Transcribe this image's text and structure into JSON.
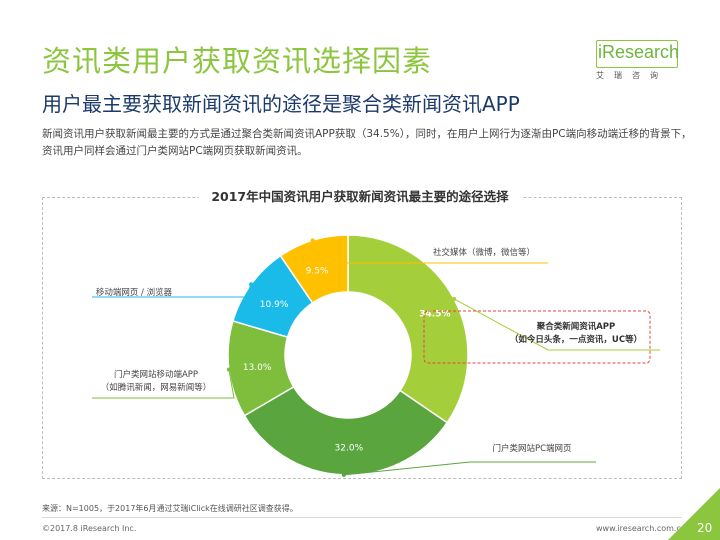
{
  "header": {
    "title": "资讯类用户获取资讯选择因素",
    "subtitle": "用户最主要获取新闻资讯的途径是聚合类新闻资讯APP",
    "intro": "新闻资讯用户获取新闻最主要的方式是通过聚合类新闻资讯APP获取（34.5%），同时，在用户上网行为逐渐由PC端向移动端迁移的背景下，资讯用户同样会通过门户类网站PC端网页获取新闻资讯。"
  },
  "logo": {
    "name": "iResearch",
    "sub": "艾瑞咨询"
  },
  "colors": {
    "title": "#8cc63f",
    "subtitle": "#1b3a6b",
    "highlight": "#e8423f"
  },
  "chart_data": {
    "type": "pie",
    "style": "donut",
    "title": "2017年中国资讯用户获取新闻资讯最主要的途径选择",
    "slices": [
      {
        "label": "聚合类新闻资讯APP",
        "label_line2": "（如今日头条，一点资讯，UC等）",
        "value": 34.5,
        "value_label": "34.5%",
        "color": "#a5cf3a",
        "highlighted": true
      },
      {
        "label": "门户类网站PC端网页",
        "label_line2": "",
        "value": 32.0,
        "value_label": "32.0%",
        "color": "#5aa53d",
        "highlighted": false
      },
      {
        "label": "门户类网站移动端APP",
        "label_line2": "（如腾讯新闻，网易新闻等）",
        "value": 13.0,
        "value_label": "13.0%",
        "color": "#7fbe3c",
        "highlighted": false
      },
      {
        "label": "移动端网页 / 浏览器",
        "label_line2": "",
        "value": 10.9,
        "value_label": "10.9%",
        "color": "#1bbbe9",
        "highlighted": false
      },
      {
        "label": "社交媒体（微博，微信等）",
        "label_line2": "",
        "value": 9.5,
        "value_label": "9.5%",
        "color": "#ffc000",
        "highlighted": false
      }
    ]
  },
  "footer": {
    "source": "来源：N=1005，于2017年6月通过艾瑞iClick在线调研社区调查获得。",
    "copyright": "©2017.8 iResearch Inc.",
    "website": "www.iresearch.com.cn",
    "page": "20"
  }
}
